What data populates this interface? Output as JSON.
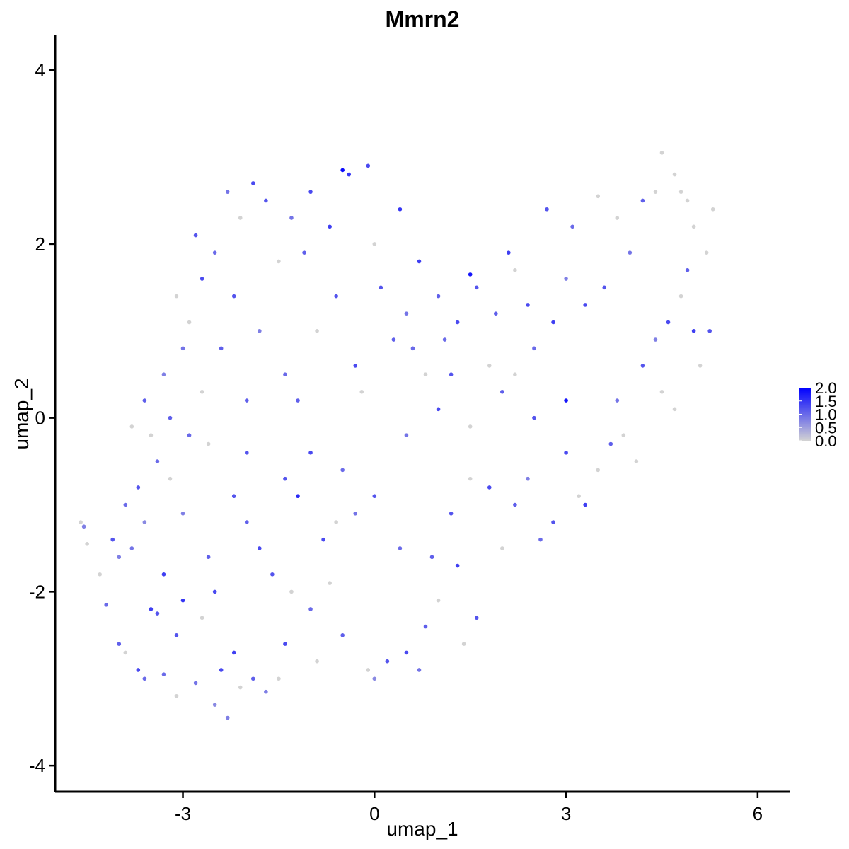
{
  "chart_data": {
    "type": "scatter",
    "title": "Mmrn2",
    "xlabel": "umap_1",
    "ylabel": "umap_2",
    "xlim": [
      -5.0,
      6.5
    ],
    "ylim": [
      -4.3,
      4.4
    ],
    "xticks": [
      -3,
      0,
      3,
      6
    ],
    "xtick_labels": [
      "-3",
      "0",
      "3",
      "6"
    ],
    "yticks": [
      -4,
      -2,
      0,
      2,
      4
    ],
    "ytick_labels": [
      "-4",
      "-2",
      "0",
      "2",
      "4"
    ],
    "grid": false,
    "color_scale": {
      "low_color": "#d3d3d3",
      "high_color": "#0000ff",
      "range": [
        0,
        2.0
      ],
      "breaks": [
        0,
        0.5,
        1.0,
        1.5,
        2.0
      ],
      "labels": [
        "0.0",
        "0.5",
        "1.0",
        "1.5",
        "2.0"
      ],
      "legend_position": "right"
    },
    "points": [
      [
        -4.6,
        -1.2,
        0.0
      ],
      [
        -4.55,
        -1.25,
        0.8
      ],
      [
        -4.5,
        -1.45,
        0.0
      ],
      [
        -4.3,
        -1.8,
        0.0
      ],
      [
        -4.2,
        -2.15,
        1.0
      ],
      [
        -4.1,
        -1.4,
        1.2
      ],
      [
        -4.0,
        -2.6,
        1.1
      ],
      [
        -3.9,
        -2.7,
        0.0
      ],
      [
        -3.8,
        -1.5,
        0.9
      ],
      [
        -3.7,
        -2.9,
        1.3
      ],
      [
        -3.6,
        -1.2,
        0.7
      ],
      [
        -3.5,
        -2.2,
        1.4
      ],
      [
        -3.4,
        -2.25,
        1.2
      ],
      [
        -3.3,
        -2.95,
        1.0
      ],
      [
        -3.2,
        -0.7,
        0.0
      ],
      [
        -3.1,
        -3.2,
        0.0
      ],
      [
        -3.0,
        -2.1,
        1.5
      ],
      [
        -3.0,
        -1.1,
        0.8
      ],
      [
        -2.9,
        -0.2,
        1.0
      ],
      [
        -2.8,
        -3.05,
        0.9
      ],
      [
        -2.7,
        0.3,
        0.0
      ],
      [
        -2.6,
        -1.6,
        1.1
      ],
      [
        -2.5,
        -3.3,
        0.7
      ],
      [
        -2.4,
        -2.9,
        1.3
      ],
      [
        -2.3,
        -3.45,
        0.8
      ],
      [
        -2.2,
        -2.7,
        1.4
      ],
      [
        -2.1,
        -3.1,
        0.0
      ],
      [
        -2.0,
        -0.4,
        1.2
      ],
      [
        -1.9,
        -3.0,
        1.1
      ],
      [
        -1.8,
        -1.5,
        1.3
      ],
      [
        -1.7,
        -3.15,
        0.8
      ],
      [
        -1.5,
        -3.0,
        0.0
      ],
      [
        -1.4,
        -0.7,
        1.2
      ],
      [
        -1.3,
        -2.0,
        0.0
      ],
      [
        -1.2,
        -0.9,
        1.6
      ],
      [
        -1.0,
        -2.2,
        1.0
      ],
      [
        -0.9,
        -2.8,
        0.0
      ],
      [
        -0.8,
        -1.4,
        1.3
      ],
      [
        -0.6,
        -1.2,
        0.0
      ],
      [
        -0.5,
        -2.5,
        1.1
      ],
      [
        -0.3,
        -1.1,
        0.9
      ],
      [
        -0.1,
        -2.9,
        0.0
      ],
      [
        0.0,
        -3.0,
        0.7
      ],
      [
        0.2,
        -2.8,
        1.2
      ],
      [
        0.4,
        -1.5,
        1.0
      ],
      [
        0.5,
        -2.7,
        1.3
      ],
      [
        0.7,
        -2.9,
        0.9
      ],
      [
        0.9,
        -1.6,
        1.1
      ],
      [
        1.0,
        -2.1,
        0.0
      ],
      [
        1.2,
        -1.1,
        1.2
      ],
      [
        1.3,
        -1.7,
        1.4
      ],
      [
        1.5,
        -0.7,
        0.0
      ],
      [
        1.6,
        -2.3,
        1.2
      ],
      [
        1.8,
        -0.8,
        1.3
      ],
      [
        2.0,
        -1.5,
        0.0
      ],
      [
        2.2,
        -1.0,
        1.1
      ],
      [
        2.4,
        -0.7,
        0.8
      ],
      [
        2.6,
        -1.4,
        1.0
      ],
      [
        2.8,
        -1.2,
        1.2
      ],
      [
        3.0,
        -0.4,
        1.3
      ],
      [
        3.2,
        -0.9,
        0.0
      ],
      [
        3.3,
        -1.0,
        1.4
      ],
      [
        3.5,
        -0.6,
        0.0
      ],
      [
        3.7,
        -0.3,
        1.1
      ],
      [
        3.8,
        0.2,
        0.9
      ],
      [
        3.9,
        -0.2,
        0.0
      ],
      [
        4.1,
        -0.5,
        0.0
      ],
      [
        4.2,
        0.6,
        1.2
      ],
      [
        4.4,
        0.9,
        0.8
      ],
      [
        4.5,
        0.3,
        0.0
      ],
      [
        4.6,
        1.1,
        1.3
      ],
      [
        4.7,
        0.1,
        0.0
      ],
      [
        4.8,
        1.4,
        0.0
      ],
      [
        4.9,
        1.7,
        1.1
      ],
      [
        5.0,
        1.0,
        1.4
      ],
      [
        5.1,
        0.6,
        0.0
      ],
      [
        5.2,
        1.9,
        0.0
      ],
      [
        5.3,
        2.4,
        0.0
      ],
      [
        5.25,
        1.0,
        1.2
      ],
      [
        5.0,
        2.2,
        0.0
      ],
      [
        4.9,
        2.5,
        0.0
      ],
      [
        4.8,
        2.6,
        0.0
      ],
      [
        4.7,
        2.8,
        0.0
      ],
      [
        4.5,
        3.05,
        0.0
      ],
      [
        4.4,
        2.6,
        0.0
      ],
      [
        4.2,
        2.5,
        1.1
      ],
      [
        4.0,
        1.9,
        0.9
      ],
      [
        3.8,
        2.3,
        0.0
      ],
      [
        3.6,
        1.5,
        1.2
      ],
      [
        3.5,
        2.55,
        0.0
      ],
      [
        3.3,
        1.3,
        1.3
      ],
      [
        3.1,
        2.2,
        1.0
      ],
      [
        3.0,
        1.6,
        0.8
      ],
      [
        2.8,
        1.1,
        1.4
      ],
      [
        2.7,
        2.4,
        1.2
      ],
      [
        2.5,
        0.8,
        1.0
      ],
      [
        2.4,
        1.3,
        1.3
      ],
      [
        2.2,
        1.7,
        0.0
      ],
      [
        2.1,
        1.9,
        1.4
      ],
      [
        1.9,
        1.2,
        1.1
      ],
      [
        1.8,
        0.6,
        0.0
      ],
      [
        1.6,
        1.5,
        1.2
      ],
      [
        1.5,
        1.65,
        1.8
      ],
      [
        1.3,
        1.1,
        1.3
      ],
      [
        1.1,
        0.9,
        1.0
      ],
      [
        1.0,
        1.4,
        1.1
      ],
      [
        0.8,
        0.5,
        0.0
      ],
      [
        0.7,
        1.8,
        1.4
      ],
      [
        0.5,
        1.2,
        0.9
      ],
      [
        0.4,
        2.4,
        1.5
      ],
      [
        0.3,
        0.9,
        1.1
      ],
      [
        0.1,
        1.5,
        1.2
      ],
      [
        0.0,
        2.0,
        0.0
      ],
      [
        -0.1,
        2.9,
        1.3
      ],
      [
        -0.2,
        0.3,
        0.0
      ],
      [
        -0.4,
        2.8,
        1.5
      ],
      [
        -0.5,
        2.85,
        1.9
      ],
      [
        -0.6,
        1.4,
        1.2
      ],
      [
        -0.7,
        2.2,
        1.4
      ],
      [
        -0.9,
        1.0,
        0.0
      ],
      [
        -1.0,
        2.6,
        1.3
      ],
      [
        -1.1,
        1.9,
        1.1
      ],
      [
        -1.3,
        2.3,
        0.9
      ],
      [
        -1.4,
        0.5,
        1.0
      ],
      [
        -1.5,
        1.8,
        0.0
      ],
      [
        -1.7,
        2.5,
        1.2
      ],
      [
        -1.8,
        1.0,
        0.8
      ],
      [
        -1.9,
        2.7,
        1.3
      ],
      [
        -2.0,
        0.2,
        1.1
      ],
      [
        -2.1,
        2.3,
        0.0
      ],
      [
        -2.2,
        1.4,
        1.2
      ],
      [
        -2.3,
        2.6,
        0.9
      ],
      [
        -2.4,
        0.8,
        1.1
      ],
      [
        -2.5,
        1.9,
        1.0
      ],
      [
        -2.6,
        -0.3,
        0.0
      ],
      [
        -2.7,
        1.6,
        1.3
      ],
      [
        -2.8,
        2.1,
        1.2
      ],
      [
        -2.9,
        1.1,
        0.0
      ],
      [
        -3.0,
        0.8,
        0.9
      ],
      [
        -3.1,
        1.4,
        0.0
      ],
      [
        -3.2,
        0.0,
        1.1
      ],
      [
        -3.3,
        0.5,
        0.8
      ],
      [
        -3.4,
        -0.5,
        1.0
      ],
      [
        -3.5,
        -0.2,
        0.0
      ],
      [
        -3.6,
        0.2,
        1.1
      ],
      [
        -3.7,
        -0.8,
        1.2
      ],
      [
        -3.8,
        -0.1,
        0.0
      ],
      [
        -3.9,
        -1.0,
        1.0
      ],
      [
        -4.0,
        -1.6,
        0.8
      ],
      [
        -3.3,
        -1.8,
        1.4
      ],
      [
        -2.5,
        -2.0,
        1.3
      ],
      [
        -2.0,
        -1.2,
        1.1
      ],
      [
        -1.6,
        -1.8,
        1.2
      ],
      [
        -1.0,
        -0.4,
        1.3
      ],
      [
        -0.5,
        -0.6,
        1.0
      ],
      [
        0.0,
        -0.9,
        1.2
      ],
      [
        0.5,
        -0.2,
        0.9
      ],
      [
        1.0,
        0.1,
        1.3
      ],
      [
        1.5,
        -0.1,
        0.0
      ],
      [
        2.0,
        0.3,
        1.1
      ],
      [
        2.5,
        0.0,
        1.2
      ],
      [
        3.0,
        0.2,
        1.8
      ],
      [
        -1.2,
        0.2,
        1.1
      ],
      [
        -0.3,
        0.6,
        1.3
      ],
      [
        0.6,
        0.8,
        1.0
      ],
      [
        1.2,
        0.5,
        1.2
      ],
      [
        2.2,
        0.5,
        0.0
      ],
      [
        -2.2,
        -0.9,
        1.2
      ],
      [
        -1.4,
        -2.6,
        1.3
      ],
      [
        -0.7,
        -1.9,
        0.0
      ],
      [
        0.8,
        -2.4,
        1.1
      ],
      [
        1.4,
        -2.6,
        0.0
      ],
      [
        -3.1,
        -2.5,
        1.2
      ],
      [
        -3.6,
        -3.0,
        1.0
      ],
      [
        -2.7,
        -2.3,
        0.0
      ]
    ]
  }
}
